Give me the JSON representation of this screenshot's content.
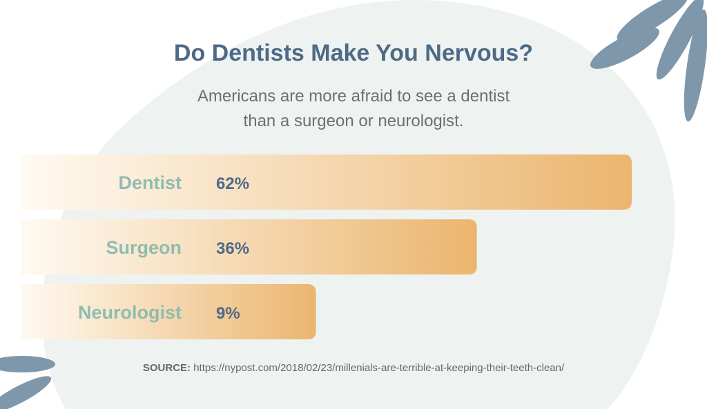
{
  "title": "Do Dentists Make You Nervous?",
  "subtitle_line1": "Americans are more afraid to see a dentist",
  "subtitle_line2": "than a surgeon or neurologist.",
  "source_label": "SOURCE:",
  "source_url": "https://nypost.com/2018/02/23/millenials-are-terrible-at-keeping-their-teeth-clean/",
  "colors": {
    "title": "#4e6a86",
    "subtitle": "#6e6e6e",
    "category_label": "#8fbcaf",
    "value_label": "#4e6a86",
    "bar_start": "#fffaf2",
    "bar_end": "#ebb56e",
    "blob": "#eef3f1",
    "leaf": "#7f97aa",
    "source": "#666666"
  },
  "chart_data": {
    "type": "bar",
    "orientation": "horizontal",
    "categories": [
      "Dentist",
      "Surgeon",
      "Neurologist"
    ],
    "values": [
      62,
      36,
      9
    ],
    "value_labels": [
      "62%",
      "36%",
      "9%"
    ],
    "unit": "%",
    "grid": false,
    "legend": "none"
  }
}
